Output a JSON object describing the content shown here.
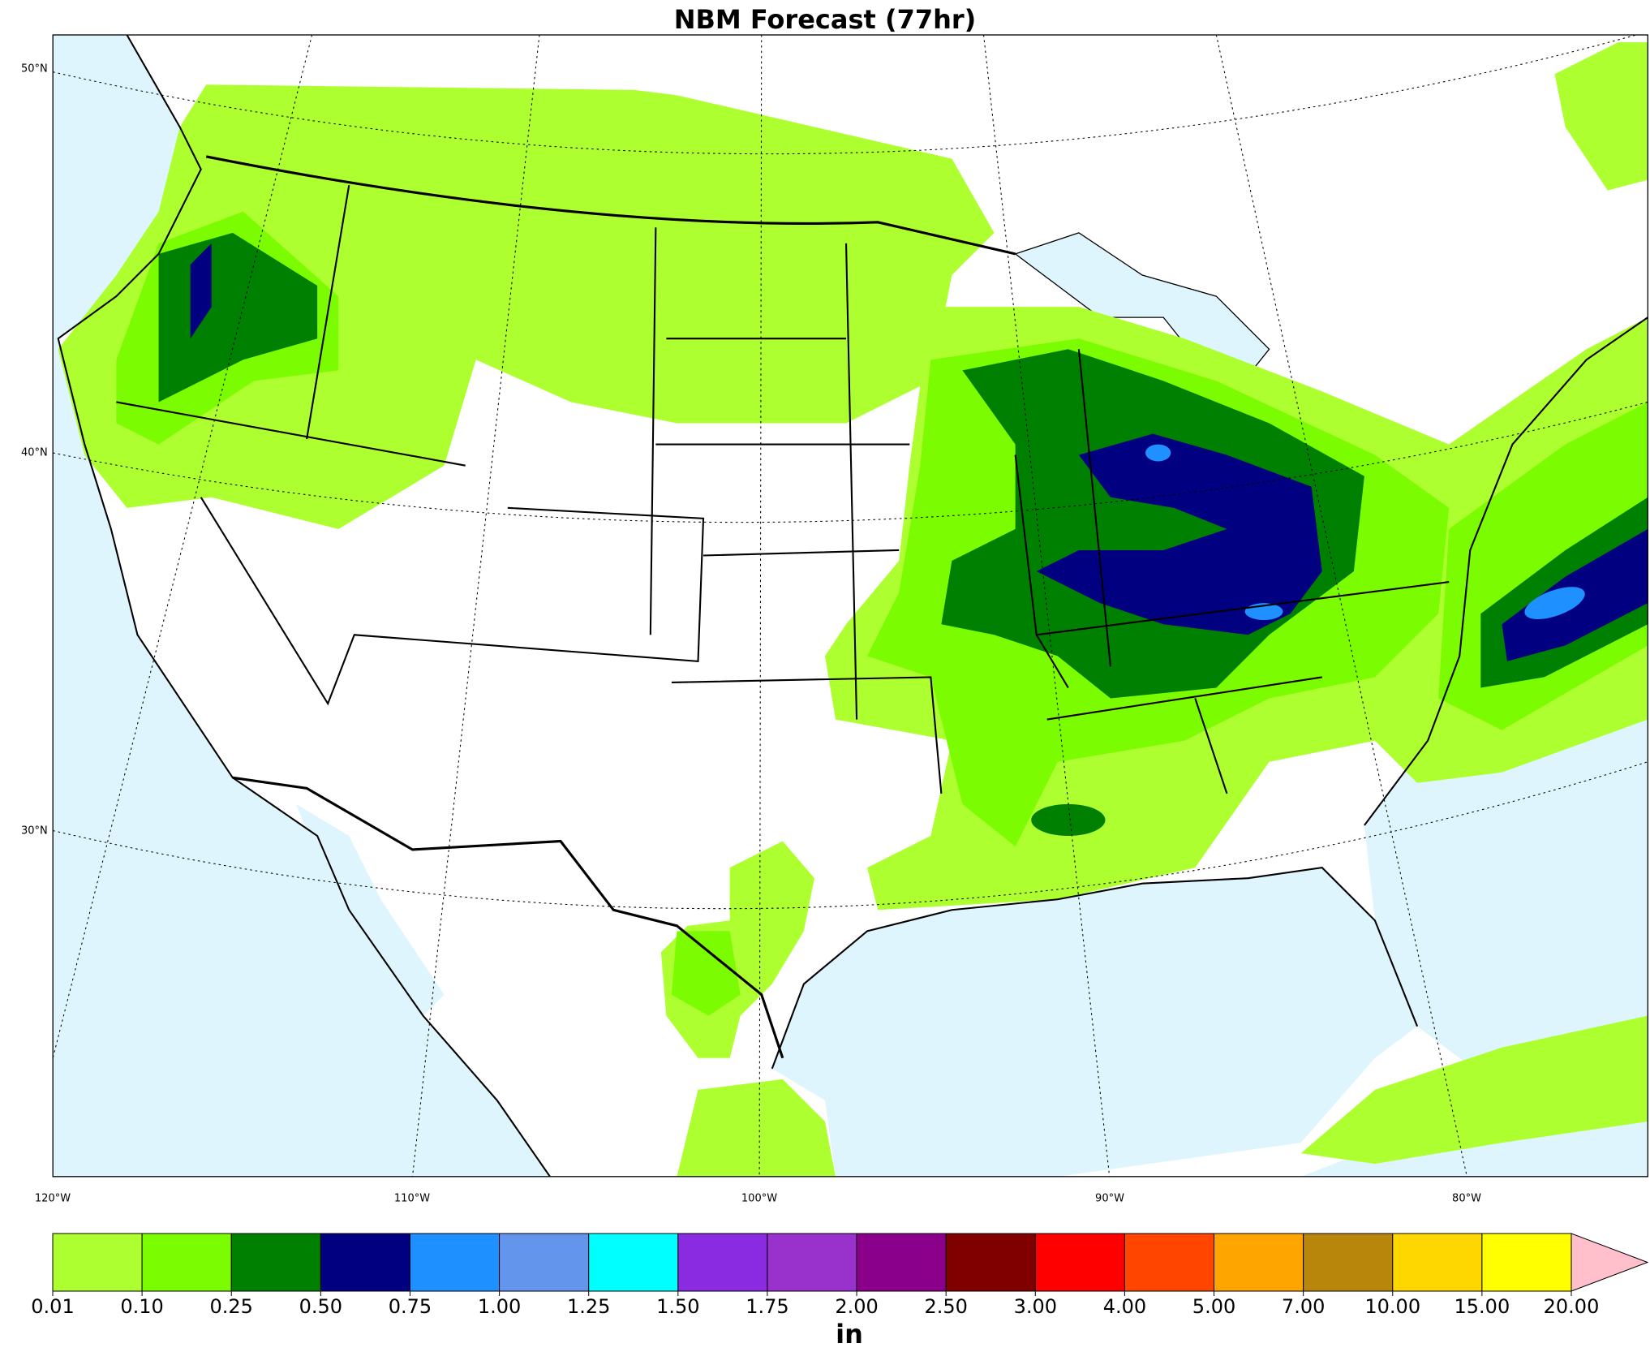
{
  "title": "NBM Forecast (77hr)",
  "map": {
    "lat_labels": [
      "50°N",
      "40°N",
      "30°N"
    ],
    "lon_labels": [
      "120°W",
      "110°W",
      "100°W",
      "90°W",
      "80°W"
    ]
  },
  "colorbar": {
    "ticks": [
      {
        "value": 0.01,
        "label": "0.01"
      },
      {
        "value": 0.1,
        "label": "0.10"
      },
      {
        "value": 0.25,
        "label": "0.25"
      },
      {
        "value": 0.5,
        "label": "0.50"
      },
      {
        "value": 0.75,
        "label": "0.75"
      },
      {
        "value": 1,
        "label": "1.00"
      },
      {
        "value": 1.25,
        "label": "1.25"
      },
      {
        "value": 1.5,
        "label": "1.50"
      },
      {
        "value": 1.75,
        "label": "1.75"
      },
      {
        "value": 2,
        "label": "2.00"
      },
      {
        "value": 2.5,
        "label": "2.50"
      },
      {
        "value": 3,
        "label": "3.00"
      },
      {
        "value": 4,
        "label": "4.00"
      },
      {
        "value": 5,
        "label": "5.00"
      },
      {
        "value": 7,
        "label": "7.00"
      },
      {
        "value": 10,
        "label": "10.00"
      },
      {
        "value": 15,
        "label": "15.00"
      },
      {
        "value": 20,
        "label": "20.00"
      }
    ],
    "colors": [
      "#adff2f",
      "#7cfc00",
      "#008000",
      "#000080",
      "#1e90ff",
      "#6495ed",
      "#00ffff",
      "#8a2be2",
      "#9932cc",
      "#8b008b",
      "#800000",
      "#ff0000",
      "#ff4500",
      "#ffa500",
      "#b8860b",
      "#ffd700",
      "#ffff00"
    ],
    "extend_color": "#ffc0cb",
    "label": "in"
  }
}
